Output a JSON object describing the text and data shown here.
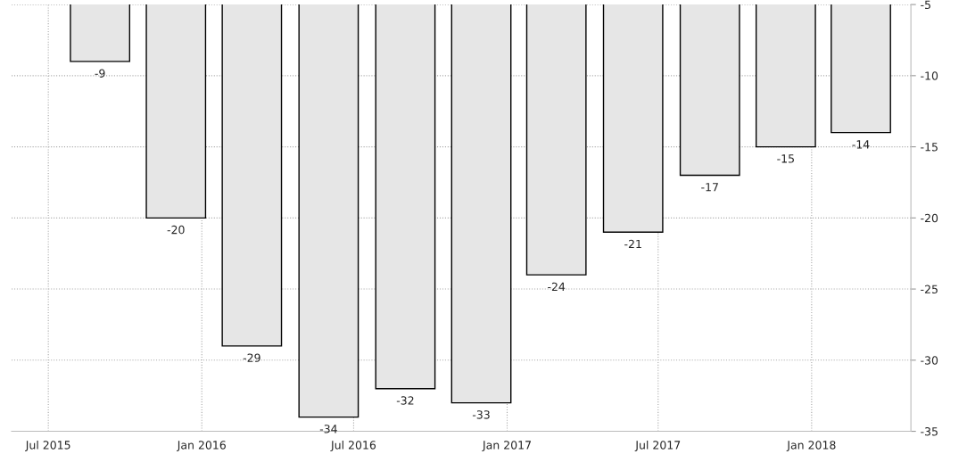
{
  "chart_data": {
    "type": "bar",
    "x": [
      "2015-09",
      "2015-12",
      "2016-03",
      "2016-06",
      "2016-09",
      "2016-12",
      "2017-03",
      "2017-06",
      "2017-09",
      "2017-12",
      "2018-03"
    ],
    "values": [
      -9,
      -20,
      -29,
      -34,
      -32,
      -33,
      -24,
      -21,
      -17,
      -15,
      -14
    ],
    "color": "#e6e6e6",
    "data_labels": true,
    "ylim": [
      -35,
      -5
    ],
    "yticks": [
      -35,
      -30,
      -25,
      -20,
      -15,
      -10,
      -5
    ],
    "xlim": [
      "2015-05-18",
      "2018-04-30"
    ],
    "xticks": [
      {
        "value": "2015-07",
        "label": "Jul 2015"
      },
      {
        "value": "2016-01",
        "label": "Jan 2016"
      },
      {
        "value": "2016-07",
        "label": "Jul 2016"
      },
      {
        "value": "2017-01",
        "label": "Jan 2017"
      },
      {
        "value": "2017-07",
        "label": "Jul 2017"
      },
      {
        "value": "2018-01",
        "label": "Jan 2018"
      }
    ],
    "grid": true
  }
}
